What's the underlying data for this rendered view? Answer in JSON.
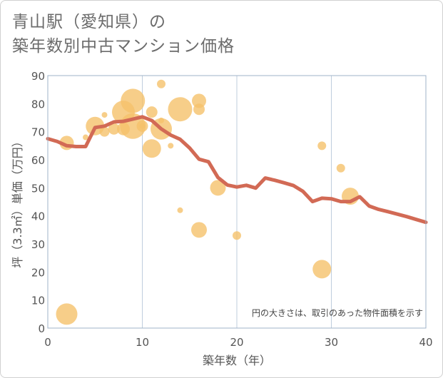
{
  "title_lines": [
    "青山駅（愛知県）の",
    "築年数別中古マンション価格"
  ],
  "chart_data": {
    "type": "scatter",
    "title": "青山駅（愛知県）の築年数別中古マンション価格",
    "xlabel": "築年数（年）",
    "ylabel": "坪（3.3㎡）単価（万円）",
    "xlim": [
      0,
      40
    ],
    "ylim": [
      0,
      90
    ],
    "x_ticks": [
      "0",
      "10",
      "20",
      "30",
      "40"
    ],
    "y_ticks": [
      "0",
      "10",
      "20",
      "30",
      "40",
      "50",
      "60",
      "70",
      "80",
      "90"
    ],
    "grid": true,
    "note": "円の大きさは、取引のあった物件面積を示す",
    "colors": {
      "bubble": "#f5c26b",
      "line": "#d26a55",
      "grid": "#bfcddd",
      "plot_bg": "#ffffff"
    },
    "series": [
      {
        "kind": "bubble",
        "points": [
          {
            "x": 2,
            "y": 5,
            "size": 15
          },
          {
            "x": 2,
            "y": 66,
            "size": 10
          },
          {
            "x": 4,
            "y": 68,
            "size": 4
          },
          {
            "x": 5,
            "y": 72,
            "size": 13
          },
          {
            "x": 6,
            "y": 70,
            "size": 7
          },
          {
            "x": 6,
            "y": 76,
            "size": 4
          },
          {
            "x": 7,
            "y": 71,
            "size": 8
          },
          {
            "x": 8,
            "y": 71,
            "size": 9
          },
          {
            "x": 8,
            "y": 77,
            "size": 16
          },
          {
            "x": 9,
            "y": 81,
            "size": 17
          },
          {
            "x": 9,
            "y": 72,
            "size": 18
          },
          {
            "x": 10,
            "y": 72,
            "size": 8
          },
          {
            "x": 10,
            "y": 72,
            "size": 4
          },
          {
            "x": 11,
            "y": 64,
            "size": 13
          },
          {
            "x": 11,
            "y": 77,
            "size": 8
          },
          {
            "x": 12,
            "y": 71,
            "size": 15
          },
          {
            "x": 12,
            "y": 87,
            "size": 6
          },
          {
            "x": 12,
            "y": 74,
            "size": 4
          },
          {
            "x": 13,
            "y": 65,
            "size": 4
          },
          {
            "x": 14,
            "y": 78,
            "size": 17
          },
          {
            "x": 14,
            "y": 42,
            "size": 4
          },
          {
            "x": 16,
            "y": 81,
            "size": 10
          },
          {
            "x": 16,
            "y": 78,
            "size": 8
          },
          {
            "x": 16,
            "y": 35,
            "size": 11
          },
          {
            "x": 18,
            "y": 50,
            "size": 11
          },
          {
            "x": 20,
            "y": 33,
            "size": 6
          },
          {
            "x": 29,
            "y": 65,
            "size": 6
          },
          {
            "x": 29,
            "y": 21,
            "size": 13
          },
          {
            "x": 31,
            "y": 57,
            "size": 6
          },
          {
            "x": 32,
            "y": 47,
            "size": 12
          }
        ]
      },
      {
        "kind": "line",
        "x": [
          0,
          1,
          2,
          3,
          4,
          5,
          6,
          7,
          8,
          9,
          10,
          11,
          12,
          13,
          14,
          15,
          16,
          17,
          18,
          19,
          20,
          21,
          22,
          23,
          24,
          25,
          26,
          27,
          28,
          29,
          30,
          31,
          32,
          33,
          34,
          35,
          36,
          37,
          38,
          39,
          40
        ],
        "y": [
          67.5,
          66.5,
          65,
          64.7,
          64.7,
          71.5,
          72,
          73.5,
          73.7,
          74.5,
          75.3,
          74,
          71,
          68.8,
          67.3,
          64.2,
          60.2,
          59.3,
          53.7,
          51,
          50.3,
          50.9,
          49.9,
          53.5,
          52.7,
          51.8,
          50.8,
          48.7,
          45.1,
          46.3,
          46.1,
          45.1,
          45.1,
          46.8,
          43.5,
          42.3,
          41.5,
          40.6,
          39.7,
          38.7,
          37.7
        ]
      }
    ]
  }
}
